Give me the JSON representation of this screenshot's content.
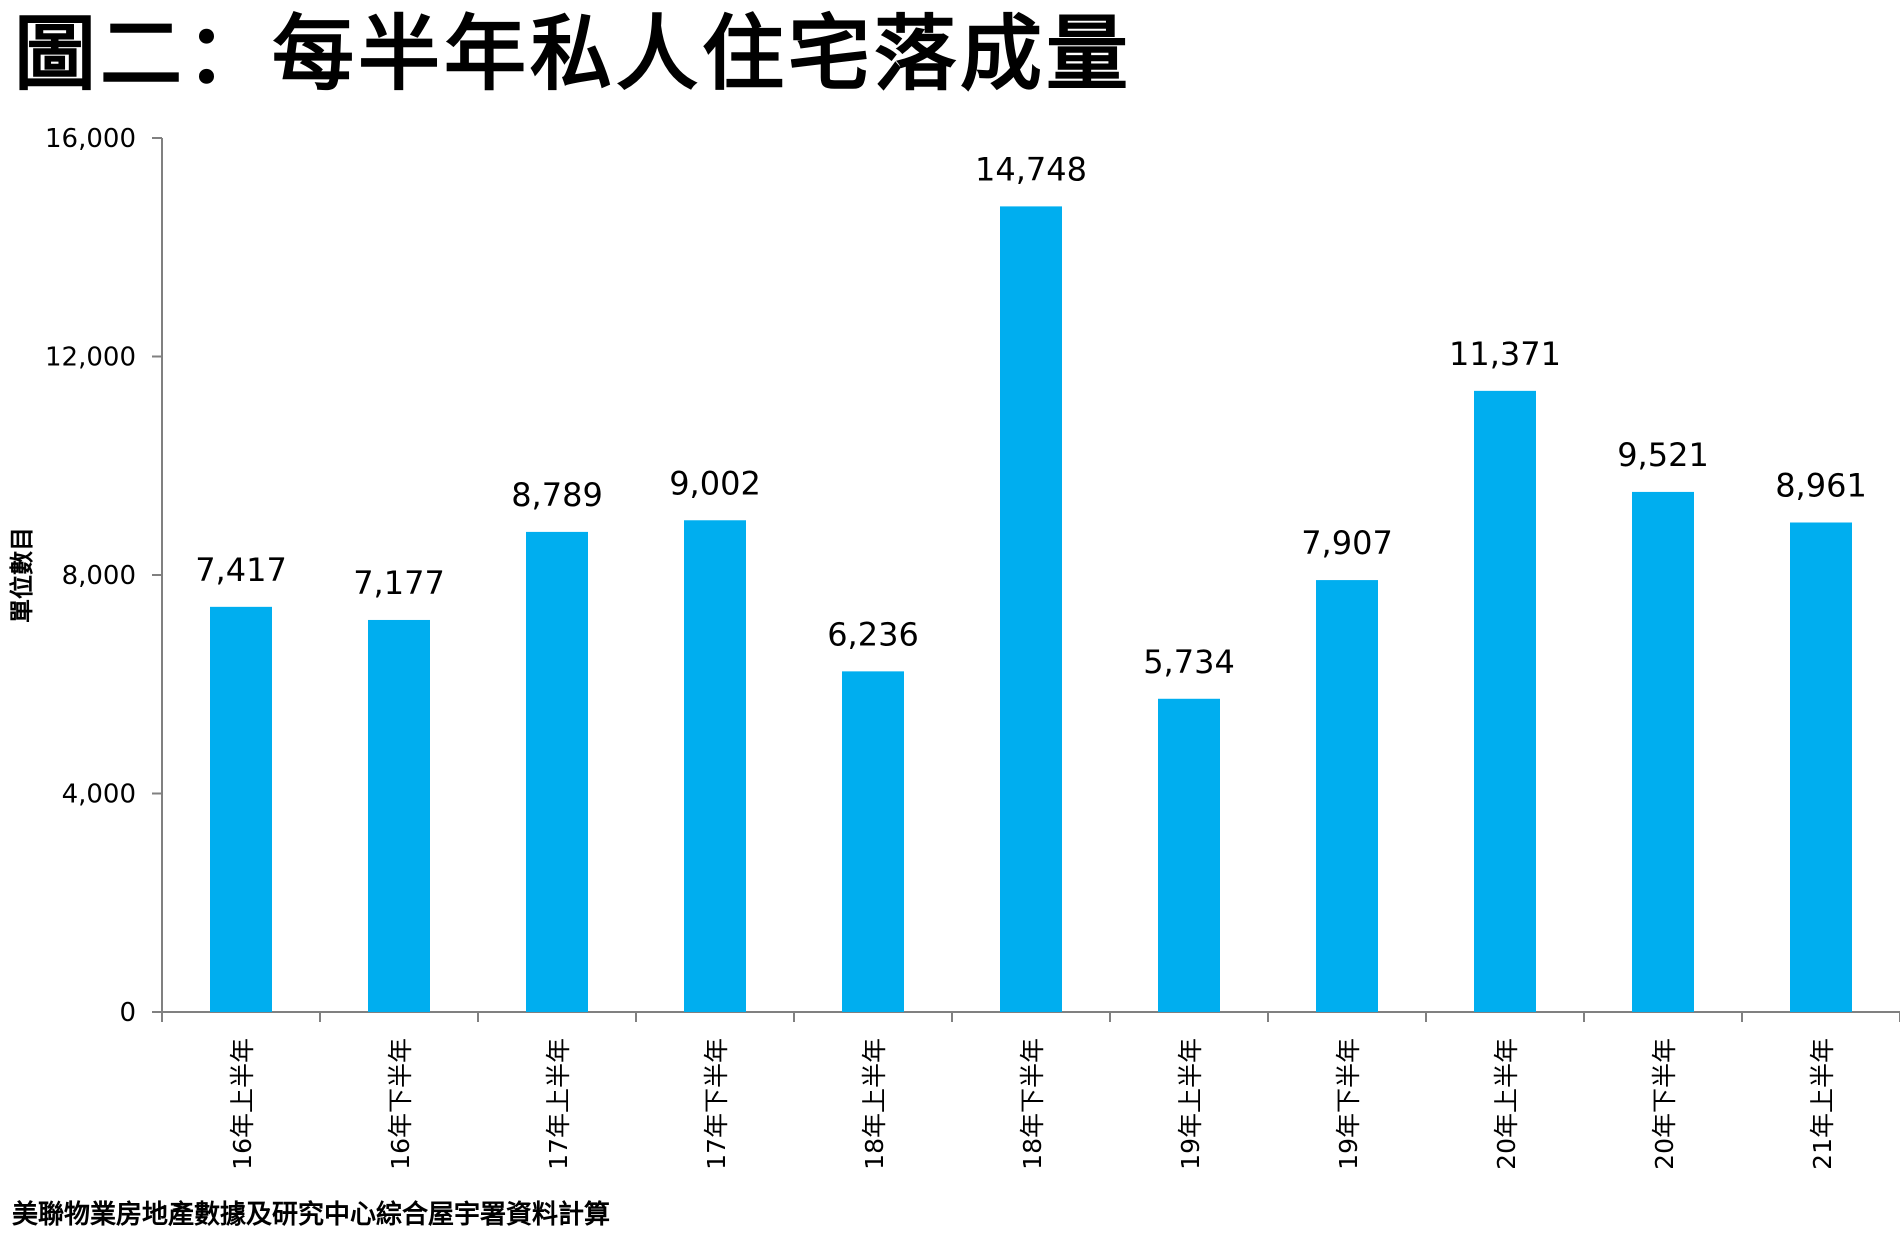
{
  "chart_data": {
    "type": "bar",
    "title": "圖二：每半年私人住宅落成量",
    "ylabel": "單位數目",
    "xlabel": "",
    "ylim": [
      0,
      16000
    ],
    "yticks": [
      "16,000",
      "12,000",
      "8,000",
      "4,000",
      "0"
    ],
    "ytick_values": [
      16000,
      12000,
      8000,
      4000,
      0
    ],
    "categories": [
      "16年上半年",
      "16年下半年",
      "17年上半年",
      "17年下半年",
      "18年上半年",
      "18年下半年",
      "19年上半年",
      "19年下半年",
      "20年上半年",
      "20年下半年",
      "21年上半年"
    ],
    "values": [
      7417,
      7177,
      8789,
      9002,
      6236,
      14748,
      5734,
      7907,
      11371,
      9521,
      8961
    ],
    "value_labels": [
      "7,417",
      "7,177",
      "8,789",
      "9,002",
      "6,236",
      "14,748",
      "5,734",
      "7,907",
      "11,371",
      "9,521",
      "8,961"
    ],
    "bar_color": "#00AEEF",
    "grid": false,
    "legend": "none"
  },
  "source": "美聯物業房地產數據及研究中心綜合屋宇署資料計算"
}
